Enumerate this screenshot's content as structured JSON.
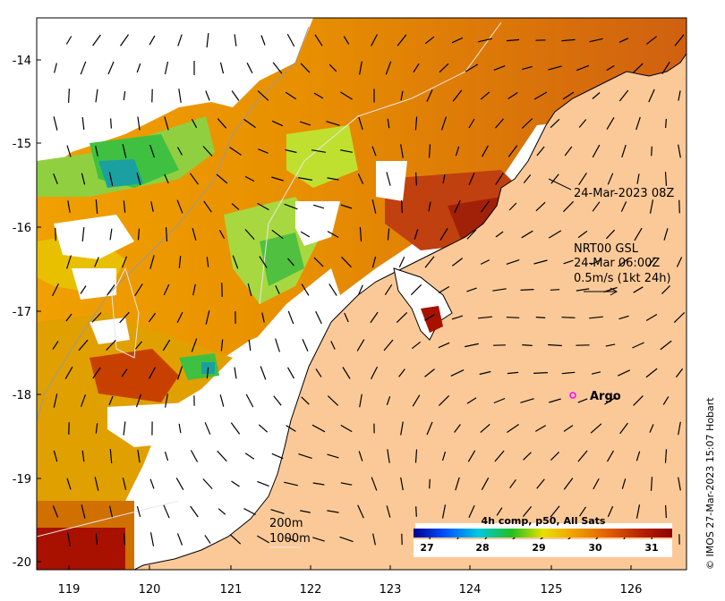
{
  "map": {
    "lon_range": [
      118.6,
      126.7
    ],
    "lat_range": [
      -20.1,
      -13.5
    ],
    "x_ticks": [
      "119",
      "120",
      "121",
      "122",
      "123",
      "124",
      "125",
      "126"
    ],
    "y_ticks": [
      "-14",
      "-15",
      "-16",
      "-17",
      "-18",
      "-19",
      "-20"
    ],
    "land_color": "#fbc998",
    "missing_color": "#ffffff"
  },
  "annotations": {
    "pass_time": "24-Mar-2023 08Z",
    "currents_line1": "NRT00 GSL",
    "currents_line2": "24-Mar 06:00Z",
    "currents_line3": "0.5m/s (1kt 24h)",
    "argo_label": "Argo",
    "iso_200": "200m",
    "iso_1000": "1000m"
  },
  "colorbar": {
    "title": "4h comp, p50, All Sats",
    "ticks": [
      "27",
      "28",
      "29",
      "30",
      "31"
    ],
    "stops": [
      "#000090",
      "#0050ff",
      "#00c8e0",
      "#20c020",
      "#e8e000",
      "#f0a000",
      "#e06000",
      "#b82000",
      "#900000"
    ]
  },
  "credit": "© IMOS 27-Mar-2023 15:07 Hobart",
  "argo_float": {
    "lon": 125.3,
    "lat": -18.0,
    "color": "#ff00ff"
  }
}
